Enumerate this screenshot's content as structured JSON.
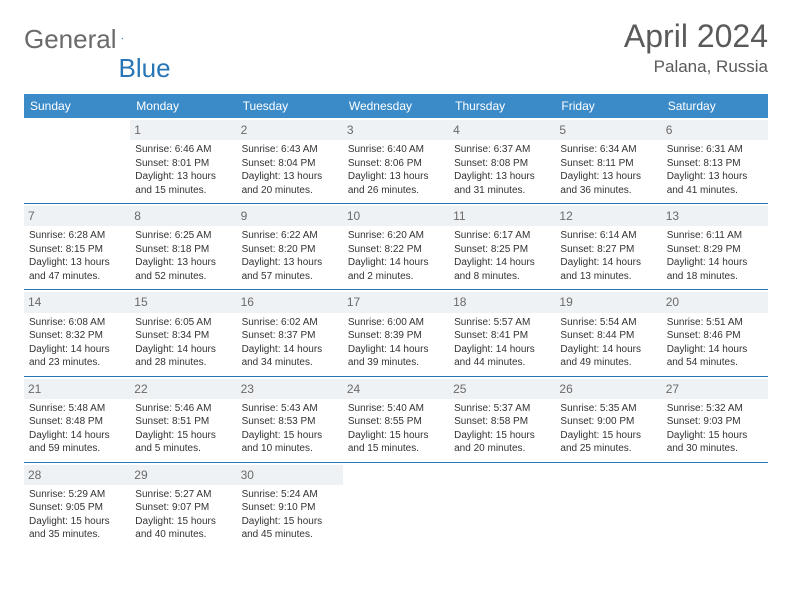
{
  "brand": {
    "part1": "General",
    "part2": "Blue"
  },
  "title": "April 2024",
  "location": "Palana, Russia",
  "colors": {
    "header_bg": "#3b8bc9",
    "header_text": "#ffffff",
    "accent": "#2976b6",
    "daynum_bg": "#eef2f5",
    "daynum_text": "#6a6a6a",
    "body_text": "#333333",
    "title_text": "#5a5a5a"
  },
  "weekdays": [
    "Sunday",
    "Monday",
    "Tuesday",
    "Wednesday",
    "Thursday",
    "Friday",
    "Saturday"
  ],
  "weeks": [
    [
      null,
      {
        "n": "1",
        "sr": "6:46 AM",
        "ss": "8:01 PM",
        "dl": "13 hours and 15 minutes."
      },
      {
        "n": "2",
        "sr": "6:43 AM",
        "ss": "8:04 PM",
        "dl": "13 hours and 20 minutes."
      },
      {
        "n": "3",
        "sr": "6:40 AM",
        "ss": "8:06 PM",
        "dl": "13 hours and 26 minutes."
      },
      {
        "n": "4",
        "sr": "6:37 AM",
        "ss": "8:08 PM",
        "dl": "13 hours and 31 minutes."
      },
      {
        "n": "5",
        "sr": "6:34 AM",
        "ss": "8:11 PM",
        "dl": "13 hours and 36 minutes."
      },
      {
        "n": "6",
        "sr": "6:31 AM",
        "ss": "8:13 PM",
        "dl": "13 hours and 41 minutes."
      }
    ],
    [
      {
        "n": "7",
        "sr": "6:28 AM",
        "ss": "8:15 PM",
        "dl": "13 hours and 47 minutes."
      },
      {
        "n": "8",
        "sr": "6:25 AM",
        "ss": "8:18 PM",
        "dl": "13 hours and 52 minutes."
      },
      {
        "n": "9",
        "sr": "6:22 AM",
        "ss": "8:20 PM",
        "dl": "13 hours and 57 minutes."
      },
      {
        "n": "10",
        "sr": "6:20 AM",
        "ss": "8:22 PM",
        "dl": "14 hours and 2 minutes."
      },
      {
        "n": "11",
        "sr": "6:17 AM",
        "ss": "8:25 PM",
        "dl": "14 hours and 8 minutes."
      },
      {
        "n": "12",
        "sr": "6:14 AM",
        "ss": "8:27 PM",
        "dl": "14 hours and 13 minutes."
      },
      {
        "n": "13",
        "sr": "6:11 AM",
        "ss": "8:29 PM",
        "dl": "14 hours and 18 minutes."
      }
    ],
    [
      {
        "n": "14",
        "sr": "6:08 AM",
        "ss": "8:32 PM",
        "dl": "14 hours and 23 minutes."
      },
      {
        "n": "15",
        "sr": "6:05 AM",
        "ss": "8:34 PM",
        "dl": "14 hours and 28 minutes."
      },
      {
        "n": "16",
        "sr": "6:02 AM",
        "ss": "8:37 PM",
        "dl": "14 hours and 34 minutes."
      },
      {
        "n": "17",
        "sr": "6:00 AM",
        "ss": "8:39 PM",
        "dl": "14 hours and 39 minutes."
      },
      {
        "n": "18",
        "sr": "5:57 AM",
        "ss": "8:41 PM",
        "dl": "14 hours and 44 minutes."
      },
      {
        "n": "19",
        "sr": "5:54 AM",
        "ss": "8:44 PM",
        "dl": "14 hours and 49 minutes."
      },
      {
        "n": "20",
        "sr": "5:51 AM",
        "ss": "8:46 PM",
        "dl": "14 hours and 54 minutes."
      }
    ],
    [
      {
        "n": "21",
        "sr": "5:48 AM",
        "ss": "8:48 PM",
        "dl": "14 hours and 59 minutes."
      },
      {
        "n": "22",
        "sr": "5:46 AM",
        "ss": "8:51 PM",
        "dl": "15 hours and 5 minutes."
      },
      {
        "n": "23",
        "sr": "5:43 AM",
        "ss": "8:53 PM",
        "dl": "15 hours and 10 minutes."
      },
      {
        "n": "24",
        "sr": "5:40 AM",
        "ss": "8:55 PM",
        "dl": "15 hours and 15 minutes."
      },
      {
        "n": "25",
        "sr": "5:37 AM",
        "ss": "8:58 PM",
        "dl": "15 hours and 20 minutes."
      },
      {
        "n": "26",
        "sr": "5:35 AM",
        "ss": "9:00 PM",
        "dl": "15 hours and 25 minutes."
      },
      {
        "n": "27",
        "sr": "5:32 AM",
        "ss": "9:03 PM",
        "dl": "15 hours and 30 minutes."
      }
    ],
    [
      {
        "n": "28",
        "sr": "5:29 AM",
        "ss": "9:05 PM",
        "dl": "15 hours and 35 minutes."
      },
      {
        "n": "29",
        "sr": "5:27 AM",
        "ss": "9:07 PM",
        "dl": "15 hours and 40 minutes."
      },
      {
        "n": "30",
        "sr": "5:24 AM",
        "ss": "9:10 PM",
        "dl": "15 hours and 45 minutes."
      },
      null,
      null,
      null,
      null
    ]
  ],
  "labels": {
    "sunrise": "Sunrise:",
    "sunset": "Sunset:",
    "daylight": "Daylight:"
  }
}
